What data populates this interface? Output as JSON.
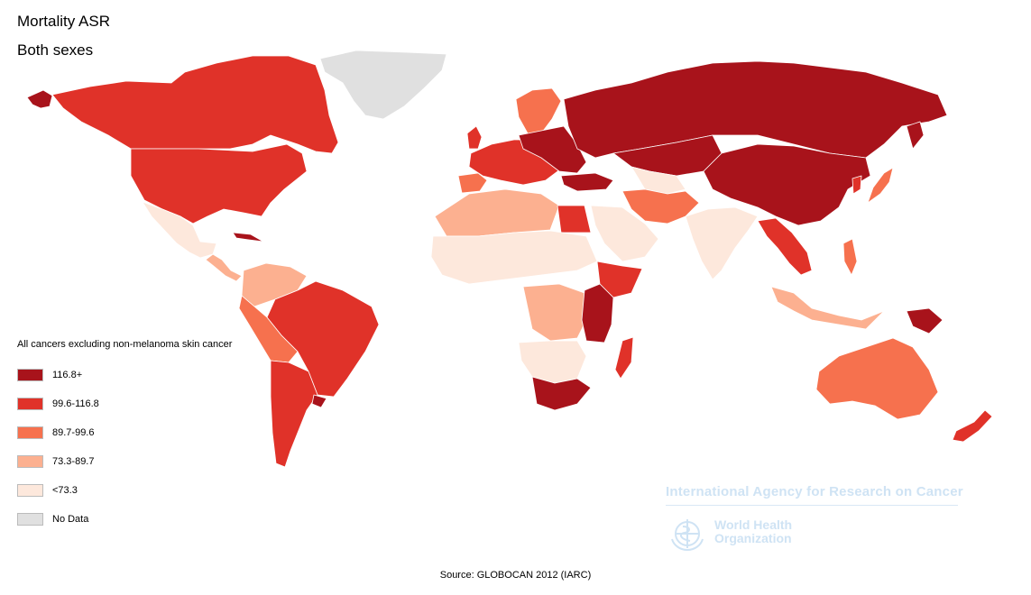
{
  "title": "Mortality ASR",
  "subtitle": "Both sexes",
  "legend": {
    "title": "All cancers excluding non-melanoma skin cancer",
    "items": [
      {
        "label": "116.8+",
        "color": "#a8131b"
      },
      {
        "label": "99.6-116.8",
        "color": "#e03229"
      },
      {
        "label": "89.7-99.6",
        "color": "#f6714e"
      },
      {
        "label": "73.3-89.7",
        "color": "#fcb090"
      },
      {
        "label": "<73.3",
        "color": "#fde8dc"
      },
      {
        "label": "No Data",
        "color": "#e0e0e0"
      }
    ]
  },
  "source": "Source: GLOBOCAN 2012 (IARC)",
  "watermark": {
    "agency": "International Agency for Research on Cancer",
    "who_line1": "World Health",
    "who_line2": "Organization",
    "logo_icon": "who-emblem-icon"
  }
}
